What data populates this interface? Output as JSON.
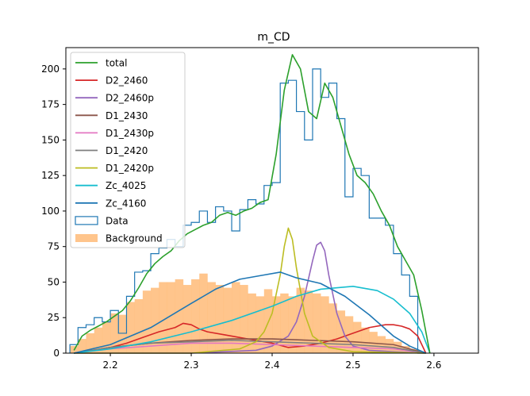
{
  "chart_data": {
    "type": "line",
    "title": "m_CD",
    "xlabel": "",
    "ylabel": "",
    "xlim": [
      2.145,
      2.655
    ],
    "ylim": [
      0,
      215
    ],
    "xticks": [
      2.2,
      2.3,
      2.4,
      2.5,
      2.6
    ],
    "xtick_labels": [
      "2.2",
      "2.3",
      "2.4",
      "2.5",
      "2.6"
    ],
    "yticks": [
      0,
      25,
      50,
      75,
      100,
      125,
      150,
      175,
      200
    ],
    "ytick_labels": [
      "0",
      "25",
      "50",
      "75",
      "100",
      "125",
      "150",
      "175",
      "200"
    ],
    "grid": false,
    "legend_position": "top-left",
    "legend": [
      "total",
      "D2_2460",
      "D2_2460p",
      "D1_2430",
      "D1_2430p",
      "D1_2420",
      "D1_2420p",
      "Zc_4025",
      "Zc_4160",
      "Data",
      "Background"
    ],
    "series": [
      {
        "name": "total",
        "kind": "line",
        "color": "#2ca02c",
        "x": [
          2.155,
          2.165,
          2.175,
          2.185,
          2.195,
          2.205,
          2.215,
          2.225,
          2.235,
          2.245,
          2.255,
          2.265,
          2.275,
          2.285,
          2.295,
          2.305,
          2.315,
          2.325,
          2.335,
          2.345,
          2.355,
          2.365,
          2.375,
          2.385,
          2.395,
          2.405,
          2.415,
          2.425,
          2.435,
          2.445,
          2.455,
          2.465,
          2.475,
          2.485,
          2.495,
          2.505,
          2.515,
          2.525,
          2.535,
          2.545,
          2.555,
          2.565,
          2.575,
          2.585,
          2.595
        ],
        "y": [
          2,
          12,
          16,
          19,
          22,
          26,
          30,
          37,
          46,
          56,
          63,
          68,
          72,
          79,
          84,
          87,
          90,
          92,
          97,
          99,
          97,
          100,
          102,
          106,
          108,
          140,
          185,
          210,
          200,
          170,
          165,
          190,
          180,
          160,
          140,
          125,
          120,
          112,
          100,
          90,
          75,
          65,
          55,
          30,
          0
        ]
      },
      {
        "name": "D2_2460",
        "kind": "line",
        "color": "#d62728",
        "x": [
          2.155,
          2.18,
          2.2,
          2.22,
          2.24,
          2.26,
          2.28,
          2.29,
          2.3,
          2.31,
          2.32,
          2.34,
          2.36,
          2.38,
          2.4,
          2.42,
          2.44,
          2.46,
          2.48,
          2.5,
          2.52,
          2.54,
          2.55,
          2.56,
          2.57,
          2.58,
          2.59
        ],
        "y": [
          0,
          2,
          4,
          7,
          11,
          15,
          18,
          21,
          20,
          17,
          15,
          13,
          11,
          9,
          7,
          4,
          5,
          7,
          10,
          14,
          18,
          20,
          20,
          19,
          17,
          12,
          0
        ]
      },
      {
        "name": "D2_2460p",
        "kind": "line",
        "color": "#9467bd",
        "x": [
          2.155,
          2.3,
          2.38,
          2.4,
          2.42,
          2.43,
          2.44,
          2.45,
          2.455,
          2.46,
          2.465,
          2.47,
          2.48,
          2.49,
          2.5,
          2.52,
          2.55,
          2.59
        ],
        "y": [
          0,
          0,
          2,
          5,
          12,
          22,
          40,
          65,
          76,
          78,
          72,
          55,
          28,
          12,
          5,
          2,
          1,
          0
        ]
      },
      {
        "name": "D1_2430",
        "kind": "line",
        "color": "#8c564b",
        "x": [
          2.155,
          2.2,
          2.25,
          2.3,
          2.35,
          2.4,
          2.45,
          2.5,
          2.55,
          2.59
        ],
        "y": [
          0,
          4,
          7,
          9,
          10,
          10,
          9,
          8,
          6,
          0
        ]
      },
      {
        "name": "D1_2430p",
        "kind": "line",
        "color": "#e377c2",
        "x": [
          2.155,
          2.2,
          2.25,
          2.3,
          2.35,
          2.4,
          2.45,
          2.5,
          2.55,
          2.59
        ],
        "y": [
          0,
          3,
          5,
          7,
          7,
          6,
          5,
          4,
          3,
          0
        ]
      },
      {
        "name": "D1_2420",
        "kind": "line",
        "color": "#7f7f7f",
        "x": [
          2.155,
          2.2,
          2.25,
          2.3,
          2.35,
          2.4,
          2.45,
          2.5,
          2.55,
          2.59
        ],
        "y": [
          0,
          4,
          7,
          8,
          9,
          8,
          7,
          6,
          4,
          0
        ]
      },
      {
        "name": "D1_2420p",
        "kind": "line",
        "color": "#bcbd22",
        "x": [
          2.155,
          2.3,
          2.36,
          2.38,
          2.39,
          2.4,
          2.41,
          2.415,
          2.42,
          2.425,
          2.43,
          2.44,
          2.45,
          2.47,
          2.5,
          2.59
        ],
        "y": [
          0,
          0,
          3,
          8,
          15,
          28,
          55,
          75,
          88,
          80,
          60,
          28,
          12,
          4,
          1,
          0
        ]
      },
      {
        "name": "Zc_4025",
        "kind": "line",
        "color": "#17becf",
        "x": [
          2.155,
          2.2,
          2.25,
          2.3,
          2.35,
          2.4,
          2.43,
          2.46,
          2.5,
          2.53,
          2.55,
          2.57,
          2.585,
          2.595
        ],
        "y": [
          0,
          3,
          8,
          15,
          23,
          33,
          40,
          45,
          47,
          44,
          38,
          28,
          15,
          0
        ]
      },
      {
        "name": "Zc_4160",
        "kind": "line",
        "color": "#1f77b4",
        "x": [
          2.155,
          2.2,
          2.25,
          2.3,
          2.33,
          2.36,
          2.39,
          2.41,
          2.43,
          2.46,
          2.49,
          2.52,
          2.55,
          2.57,
          2.59
        ],
        "y": [
          0,
          6,
          18,
          35,
          45,
          52,
          55,
          57,
          53,
          49,
          40,
          27,
          12,
          5,
          0
        ]
      },
      {
        "name": "Data",
        "kind": "step",
        "color": "#1f77b4",
        "x": [
          2.155,
          2.165,
          2.175,
          2.185,
          2.195,
          2.205,
          2.215,
          2.225,
          2.235,
          2.245,
          2.255,
          2.265,
          2.275,
          2.285,
          2.295,
          2.305,
          2.315,
          2.325,
          2.335,
          2.345,
          2.355,
          2.365,
          2.375,
          2.385,
          2.395,
          2.405,
          2.415,
          2.425,
          2.435,
          2.445,
          2.455,
          2.465,
          2.475,
          2.485,
          2.495,
          2.505,
          2.515,
          2.525,
          2.535,
          2.545,
          2.555,
          2.565,
          2.575,
          2.585
        ],
        "y": [
          6,
          18,
          20,
          25,
          22,
          30,
          14,
          40,
          57,
          58,
          70,
          74,
          80,
          75,
          90,
          92,
          100,
          92,
          103,
          100,
          86,
          101,
          108,
          105,
          118,
          120,
          190,
          192,
          170,
          150,
          200,
          180,
          190,
          165,
          110,
          130,
          125,
          95,
          95,
          90,
          70,
          55,
          40,
          0
        ]
      },
      {
        "name": "Background",
        "kind": "hist",
        "color": "#ffbb78",
        "x": [
          2.155,
          2.165,
          2.175,
          2.185,
          2.195,
          2.205,
          2.215,
          2.225,
          2.235,
          2.245,
          2.255,
          2.265,
          2.275,
          2.285,
          2.295,
          2.305,
          2.315,
          2.325,
          2.335,
          2.345,
          2.355,
          2.365,
          2.375,
          2.385,
          2.395,
          2.405,
          2.415,
          2.425,
          2.435,
          2.445,
          2.455,
          2.465,
          2.475,
          2.485,
          2.495,
          2.505,
          2.515,
          2.525,
          2.535,
          2.545,
          2.555,
          2.565,
          2.575,
          2.585
        ],
        "y": [
          5,
          10,
          14,
          18,
          22,
          28,
          27,
          36,
          38,
          44,
          46,
          50,
          50,
          52,
          48,
          52,
          56,
          50,
          48,
          46,
          50,
          48,
          42,
          40,
          45,
          40,
          42,
          40,
          46,
          44,
          42,
          40,
          35,
          30,
          26,
          22,
          18,
          15,
          12,
          10,
          8,
          5,
          3,
          1
        ]
      }
    ]
  }
}
